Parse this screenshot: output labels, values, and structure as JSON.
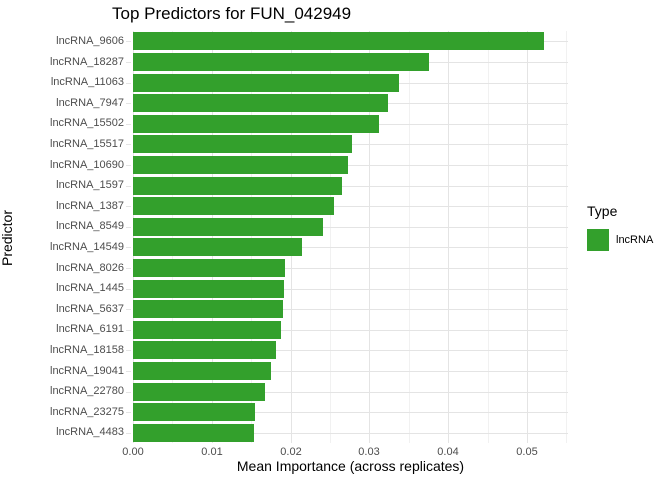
{
  "chart_data": {
    "type": "bar",
    "orientation": "horizontal",
    "title": "Top Predictors for FUN_042949",
    "xlabel": "Mean Importance (across replicates)",
    "ylabel": "Predictor",
    "categories": [
      "lncRNA_9606",
      "lncRNA_18287",
      "lncRNA_11063",
      "lncRNA_7947",
      "lncRNA_15502",
      "lncRNA_15517",
      "lncRNA_10690",
      "lncRNA_1597",
      "lncRNA_1387",
      "lncRNA_8549",
      "lncRNA_14549",
      "lncRNA_8026",
      "lncRNA_1445",
      "lncRNA_5637",
      "lncRNA_6191",
      "lncRNA_18158",
      "lncRNA_19041",
      "lncRNA_22780",
      "lncRNA_23275",
      "lncRNA_4483"
    ],
    "values": [
      0.0522,
      0.0375,
      0.0338,
      0.0324,
      0.0312,
      0.0278,
      0.0273,
      0.0265,
      0.0255,
      0.0241,
      0.0214,
      0.0193,
      0.0192,
      0.019,
      0.0188,
      0.0181,
      0.0175,
      0.0168,
      0.0155,
      0.0154
    ],
    "series_name": "lncRNA",
    "xlim": [
      0,
      0.0552
    ],
    "x_ticks": [
      0,
      0.01,
      0.02,
      0.03,
      0.04,
      0.05
    ],
    "x_tick_labels": [
      "0.00",
      "0.01",
      "0.02",
      "0.03",
      "0.04",
      "0.05"
    ],
    "x_minor_step": 0.005,
    "grid": true,
    "legend": {
      "title": "Type",
      "position": "right",
      "entries": [
        {
          "label": "lncRNA",
          "color": "#33a02c"
        }
      ]
    },
    "colors": {
      "bar": "#33a02c",
      "grid_major": "#e4e4e4",
      "grid_minor": "#f1f1f1",
      "axis_text": "#4d4d4d",
      "text": "#000000",
      "background": "#ffffff"
    }
  }
}
